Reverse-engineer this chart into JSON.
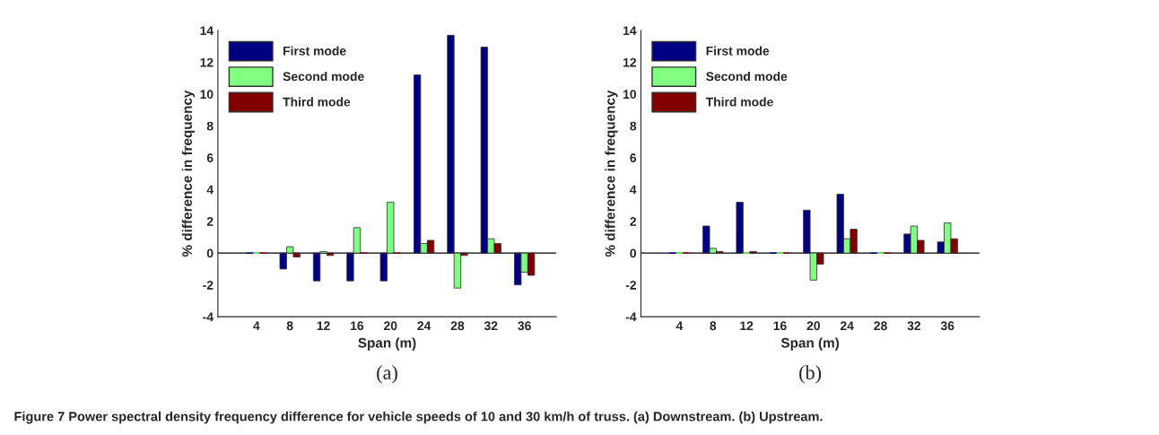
{
  "chart_data": [
    {
      "type": "bar",
      "xlabel": "Span (m)",
      "ylabel": "% difference in frequency",
      "categories": [
        "4",
        "8",
        "12",
        "16",
        "20",
        "24",
        "28",
        "32",
        "36"
      ],
      "series": [
        {
          "name": "First mode",
          "color": "#000080",
          "values": [
            0,
            -1.0,
            -1.75,
            -1.75,
            -1.75,
            11.2,
            13.7,
            12.95,
            -2.0
          ]
        },
        {
          "name": "Second mode",
          "color": "#80ff80",
          "values": [
            0,
            0.4,
            0.1,
            1.6,
            3.2,
            0.6,
            -2.2,
            0.9,
            -1.2
          ]
        },
        {
          "name": "Third mode",
          "color": "#800000",
          "values": [
            0,
            -0.25,
            -0.15,
            0,
            0,
            0.8,
            -0.15,
            0.6,
            -1.4
          ]
        }
      ],
      "ylim": [
        -4,
        14
      ],
      "yticks": [
        -4,
        -2,
        0,
        2,
        4,
        6,
        8,
        10,
        12,
        14
      ],
      "grid": false,
      "legend": "top left",
      "ref_lines": [
        {
          "axis": "y",
          "value": 0,
          "color": "#000000"
        }
      ],
      "annotations": [
        "(a)",
        "Figure 7 Power spectral density frequency difference for vehicle speeds of 10 and 30 km/h of truss. (a) Downstream. (b) Upstream."
      ]
    },
    {
      "type": "bar",
      "xlabel": "Span (m)",
      "ylabel": "% difference in frequency",
      "categories": [
        "4",
        "8",
        "12",
        "16",
        "20",
        "24",
        "28",
        "32",
        "36"
      ],
      "series": [
        {
          "name": "First mode",
          "color": "#000080",
          "values": [
            0,
            1.7,
            3.2,
            0,
            2.7,
            3.7,
            0,
            1.2,
            0.7
          ]
        },
        {
          "name": "Second mode",
          "color": "#80ff80",
          "values": [
            0,
            0.3,
            0,
            0,
            -1.7,
            0.9,
            0,
            1.7,
            1.9
          ]
        },
        {
          "name": "Third mode",
          "color": "#800000",
          "values": [
            0,
            0.1,
            0.1,
            0,
            -0.7,
            1.5,
            0,
            0.8,
            0.9
          ]
        }
      ],
      "ylim": [
        -4,
        14
      ],
      "yticks": [
        -4,
        -2,
        0,
        2,
        4,
        6,
        8,
        10,
        12,
        14
      ],
      "grid": false,
      "legend": "top left",
      "ref_lines": [
        {
          "axis": "y",
          "value": 0,
          "color": "#000000"
        }
      ],
      "annotations": [
        "(b)"
      ]
    }
  ]
}
